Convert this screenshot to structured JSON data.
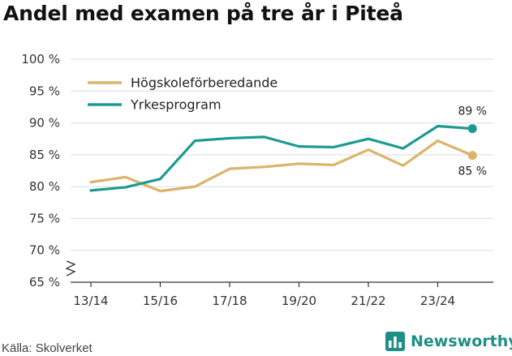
{
  "title": "Andel med examen på tre år i Piteå",
  "source": "Källa: Skolverket",
  "brand": "Newsworthy",
  "colors": {
    "hogskole": "#dbb46a",
    "yrkes": "#1d9a90",
    "grid": "#dcdcdc",
    "axis": "#333333",
    "brand": "#1d8f86"
  },
  "chart_data": {
    "type": "line",
    "title": "Andel med examen på tre år i Piteå",
    "xlabel": "",
    "ylabel": "",
    "ylim": [
      65,
      100
    ],
    "y_ticks": [
      65,
      70,
      75,
      80,
      85,
      90,
      95,
      100
    ],
    "y_tick_labels": [
      "65 %",
      "70 %",
      "75 %",
      "80 %",
      "85 %",
      "90 %",
      "95 %",
      "100 %"
    ],
    "axis_break": true,
    "grid": true,
    "legend_position": "top-left",
    "x": [
      "13/14",
      "14/15",
      "15/16",
      "16/17",
      "17/18",
      "18/19",
      "19/20",
      "20/21",
      "21/22",
      "22/23",
      "23/24",
      "24/25"
    ],
    "x_tick_labels": [
      "13/14",
      "15/16",
      "17/18",
      "19/20",
      "21/22",
      "23/24"
    ],
    "series": [
      {
        "name": "Högskoleförberedande",
        "color": "#dbb46a",
        "values": [
          80.7,
          81.5,
          79.3,
          80.0,
          82.8,
          83.1,
          83.6,
          83.4,
          85.8,
          83.3,
          87.2,
          84.9
        ],
        "end_label": "85 %"
      },
      {
        "name": "Yrkesprogram",
        "color": "#1d9a90",
        "values": [
          79.4,
          79.9,
          81.2,
          87.2,
          87.6,
          87.8,
          86.3,
          86.2,
          87.5,
          86.0,
          89.5,
          89.1
        ],
        "end_label": "89 %"
      }
    ]
  }
}
